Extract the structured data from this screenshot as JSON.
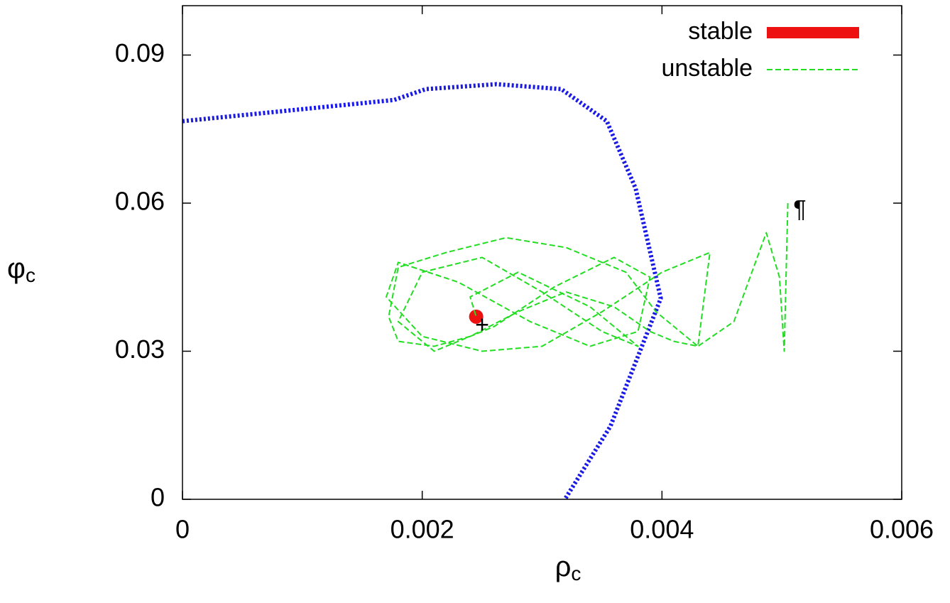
{
  "chart_data": {
    "type": "line",
    "xlabel": {
      "symbol": "ρ",
      "subscript": "c"
    },
    "ylabel": {
      "symbol": "φ",
      "subscript": "c"
    },
    "xlim": [
      0,
      0.006
    ],
    "xticks": [
      0,
      0.002,
      0.004,
      0.006
    ],
    "ylim": [
      0,
      0.1
    ],
    "yticks": [
      0,
      0.03,
      0.06,
      0.09
    ],
    "legend": "top-right",
    "series": [
      {
        "color": "#1a1ae6",
        "style": "dotted",
        "width": 6,
        "x": [
          0,
          0.001765,
          0.00203,
          0.00262,
          0.00316,
          0.00354,
          0.00378,
          0.00399,
          0.00357,
          0.00319
        ],
        "values": [
          0.0766,
          0.0809,
          0.0831,
          0.0841,
          0.0831,
          0.0766,
          0.063,
          0.0407,
          0.0148,
          0
        ]
      },
      {
        "name": "stable",
        "color": "#ee1111",
        "style": "solid",
        "width": 10,
        "x": [
          0.00245
        ],
        "values": [
          0.037
        ]
      },
      {
        "name": "unstable",
        "color": "#22dd22",
        "style": "dashed",
        "width": 2,
        "x": [
          0.00505,
          0.00502,
          0.00498,
          0.00487,
          0.00478,
          0.0046,
          0.0043,
          0.0041,
          0.0039,
          0.0036,
          0.0032,
          0.0028,
          0.0024,
          0.0021,
          0.0018,
          0.00172,
          0.0018,
          0.0022,
          0.0027,
          0.0032,
          0.0037,
          0.00395,
          0.0043,
          0.0044,
          0.004,
          0.0035,
          0.003,
          0.0025,
          0.002,
          0.0017,
          0.0018,
          0.0023,
          0.0029,
          0.0034,
          0.0038,
          0.0039,
          0.0036,
          0.0031,
          0.0026,
          0.0021,
          0.0018,
          0.002,
          0.0025,
          0.003,
          0.0035,
          0.0038,
          0.0034,
          0.0028,
          0.0024,
          0.00245
        ],
        "values": [
          0.06,
          0.03,
          0.045,
          0.054,
          0.048,
          0.036,
          0.031,
          0.032,
          0.034,
          0.039,
          0.042,
          0.038,
          0.033,
          0.031,
          0.032,
          0.037,
          0.047,
          0.05,
          0.053,
          0.051,
          0.046,
          0.038,
          0.031,
          0.05,
          0.046,
          0.038,
          0.031,
          0.03,
          0.033,
          0.041,
          0.048,
          0.044,
          0.036,
          0.031,
          0.034,
          0.045,
          0.049,
          0.043,
          0.035,
          0.03,
          0.036,
          0.046,
          0.049,
          0.042,
          0.034,
          0.031,
          0.039,
          0.046,
          0.041,
          0.037
        ]
      }
    ],
    "annotations": [
      {
        "text": "+",
        "x": 0.0025,
        "y": 0.035
      },
      {
        "text": "¶",
        "x": 0.00515,
        "y": 0.0585
      }
    ]
  }
}
